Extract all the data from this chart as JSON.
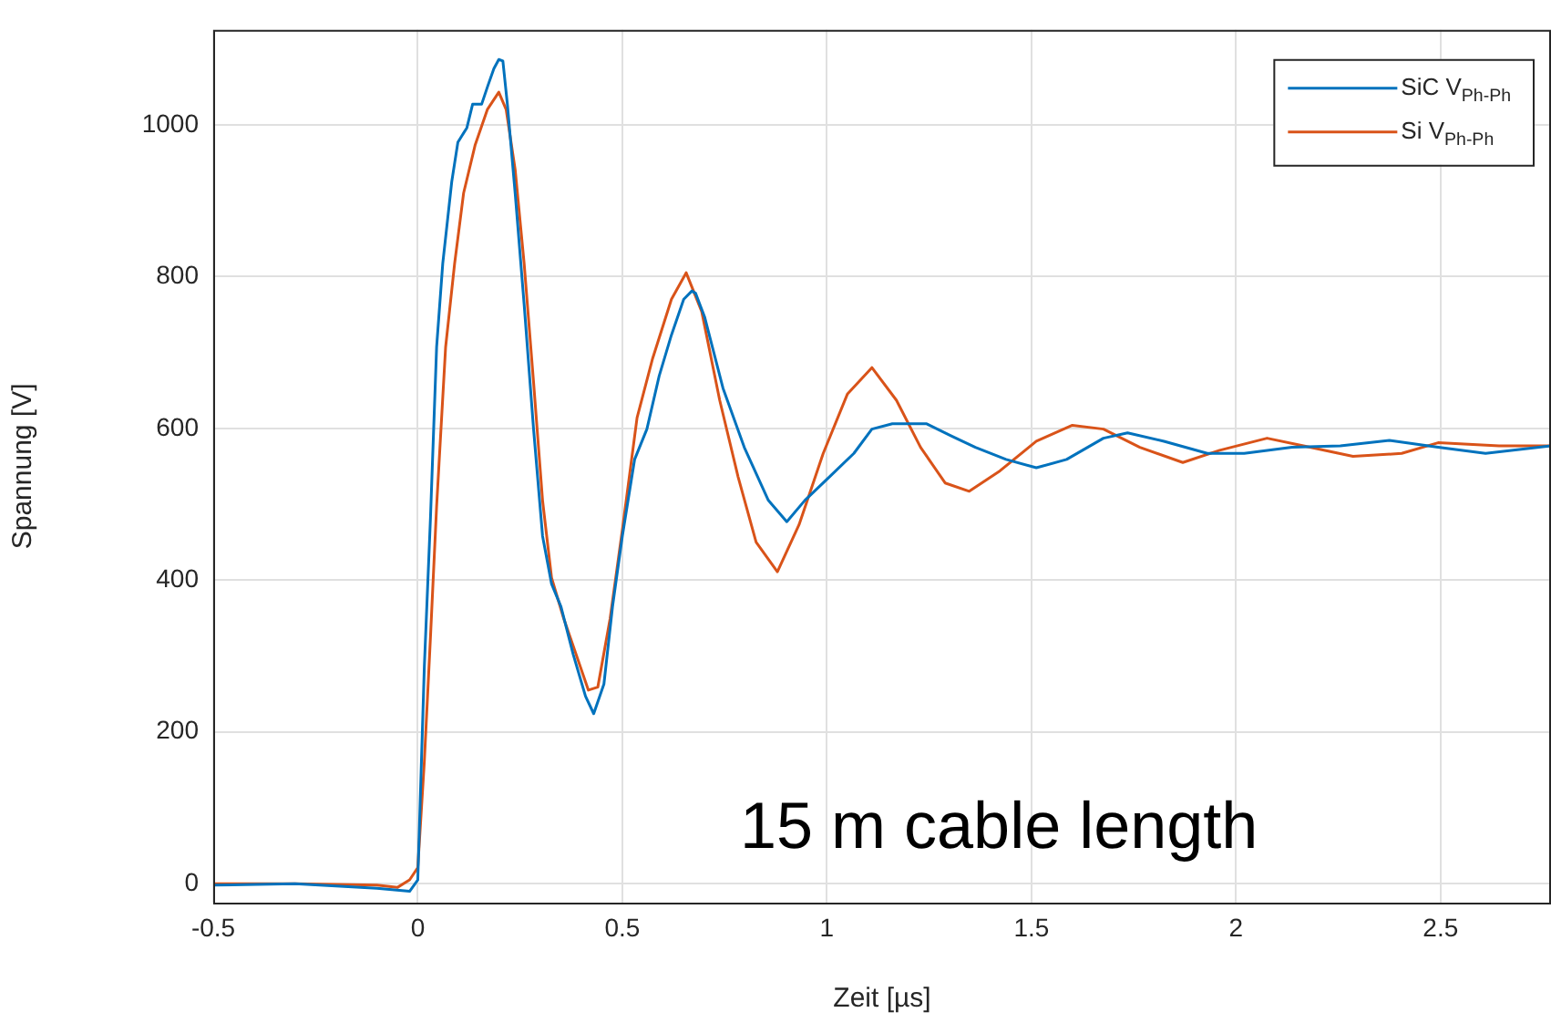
{
  "chart_data": {
    "type": "line",
    "xlabel": "Zeit [µs]",
    "ylabel": "Spannung [V]",
    "xlim": [
      -0.5,
      2.77
    ],
    "xticks": [
      -0.5,
      0,
      0.5,
      1,
      1.5,
      2,
      2.5
    ],
    "ylim": [
      -25,
      1125
    ],
    "yticks": [
      0,
      200,
      400,
      600,
      800,
      1000
    ],
    "grid": true,
    "legend": "top right",
    "marker": "none",
    "line_style": "solid",
    "annotations": [
      "15 m cable length"
    ],
    "series": [
      {
        "name": "SiC V$_{Ph-Ph}$",
        "color": "#0072bd",
        "x": [
          -0.5,
          -0.3,
          -0.1,
          -0.02,
          0,
          0.016,
          0.031,
          0.046,
          0.061,
          0.083,
          0.098,
          0.12,
          0.134,
          0.156,
          0.171,
          0.186,
          0.198,
          0.208,
          0.219,
          0.238,
          0.26,
          0.283,
          0.305,
          0.327,
          0.35,
          0.38,
          0.41,
          0.43,
          0.455,
          0.476,
          0.5,
          0.53,
          0.56,
          0.59,
          0.62,
          0.65,
          0.67,
          0.679,
          0.701,
          0.746,
          0.798,
          0.857,
          0.902,
          0.946,
          1.006,
          1.066,
          1.11,
          1.16,
          1.244,
          1.304,
          1.363,
          1.438,
          1.512,
          1.586,
          1.676,
          1.735,
          1.824,
          1.93,
          2.02,
          2.137,
          2.255,
          2.375,
          2.494,
          2.61,
          2.77
        ],
        "values": [
          -2,
          0,
          -6,
          -10,
          5,
          286,
          482,
          707,
          817,
          925,
          977,
          996,
          1027,
          1027,
          1051,
          1074,
          1086,
          1084,
          1027,
          910,
          763,
          599,
          458,
          395,
          365,
          302,
          247,
          224,
          263,
          365,
          458,
          559,
          599,
          669,
          723,
          770,
          781,
          778,
          747,
          653,
          575,
          505,
          477,
          505,
          536,
          567,
          599,
          606,
          606,
          590,
          575,
          559,
          548,
          559,
          587,
          594,
          583,
          567,
          567,
          575,
          577,
          584,
          575,
          567,
          577
        ]
      },
      {
        "name": "Si V$_{Ph-Ph}$",
        "color": "#d95319",
        "x": [
          -0.5,
          -0.3,
          -0.1,
          -0.05,
          -0.02,
          0,
          0.016,
          0.031,
          0.046,
          0.068,
          0.09,
          0.112,
          0.14,
          0.17,
          0.198,
          0.216,
          0.238,
          0.26,
          0.283,
          0.305,
          0.327,
          0.357,
          0.387,
          0.417,
          0.44,
          0.47,
          0.5,
          0.536,
          0.574,
          0.62,
          0.656,
          0.694,
          0.738,
          0.783,
          0.827,
          0.879,
          0.932,
          0.991,
          1.05,
          1.11,
          1.17,
          1.229,
          1.289,
          1.348,
          1.423,
          1.512,
          1.6,
          1.676,
          1.765,
          1.87,
          1.96,
          2.076,
          2.165,
          2.286,
          2.405,
          2.494,
          2.643,
          2.77
        ],
        "values": [
          0,
          0,
          -2,
          -5,
          5,
          21,
          161,
          325,
          497,
          707,
          817,
          910,
          973,
          1020,
          1043,
          1020,
          941,
          817,
          661,
          505,
          403,
          349,
          302,
          255,
          259,
          349,
          466,
          614,
          692,
          770,
          805,
          754,
          637,
          536,
          450,
          411,
          473,
          567,
          645,
          680,
          637,
          575,
          528,
          517,
          544,
          583,
          604,
          599,
          575,
          555,
          571,
          587,
          577,
          563,
          567,
          581,
          577,
          577
        ]
      }
    ]
  }
}
